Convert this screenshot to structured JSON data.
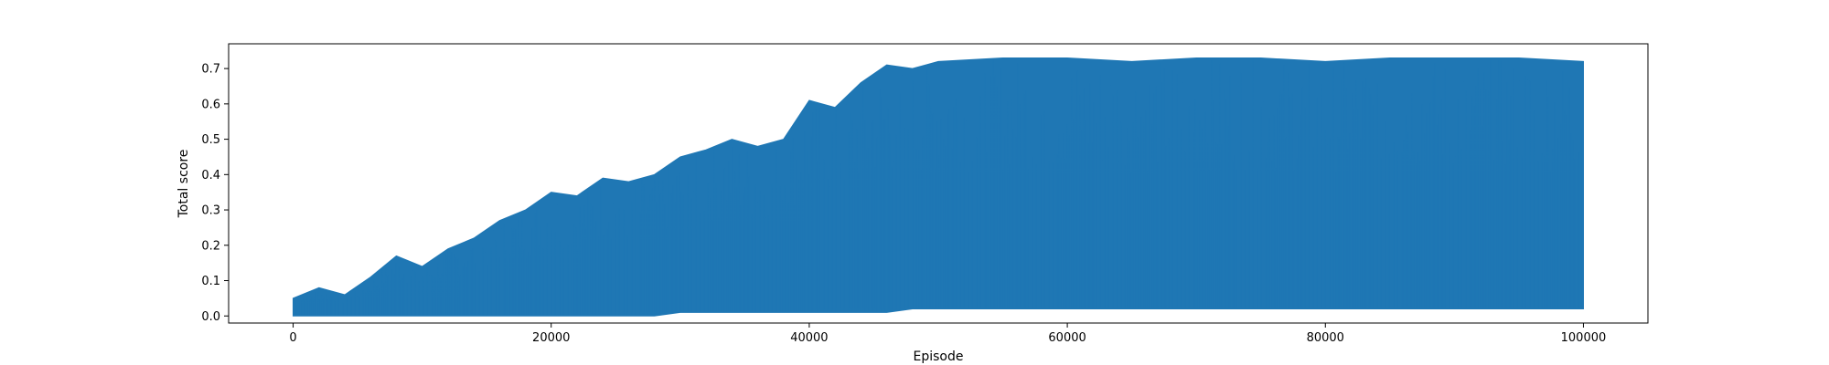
{
  "chart_data": {
    "type": "line",
    "title": "",
    "xlabel": "Episode",
    "ylabel": "Total score",
    "xlim": [
      -5000,
      105000
    ],
    "ylim": [
      -0.02,
      0.77
    ],
    "grid": false,
    "legend": "none",
    "series_color": "#1f77b4",
    "x_ticks": [
      0,
      20000,
      40000,
      60000,
      80000,
      100000
    ],
    "x_tick_labels": [
      "0",
      "20000",
      "40000",
      "60000",
      "80000",
      "100000"
    ],
    "y_ticks": [
      0.0,
      0.1,
      0.2,
      0.3,
      0.4,
      0.5,
      0.6,
      0.7
    ],
    "y_tick_labels": [
      "0.0",
      "0.1",
      "0.2",
      "0.3",
      "0.4",
      "0.5",
      "0.6",
      "0.7"
    ],
    "series": [
      {
        "x": [
          0,
          2000,
          4000,
          6000,
          8000,
          10000,
          12000,
          14000,
          16000,
          18000,
          20000,
          22000,
          24000,
          26000,
          28000,
          30000,
          32000,
          34000,
          36000,
          38000,
          40000,
          42000,
          44000,
          46000,
          48000,
          50000,
          55000,
          60000,
          65000,
          70000,
          75000,
          80000,
          85000,
          90000,
          95000,
          100000
        ],
        "upper": [
          0.05,
          0.08,
          0.06,
          0.11,
          0.17,
          0.14,
          0.19,
          0.22,
          0.27,
          0.3,
          0.35,
          0.34,
          0.39,
          0.38,
          0.4,
          0.45,
          0.47,
          0.5,
          0.48,
          0.5,
          0.61,
          0.59,
          0.66,
          0.71,
          0.7,
          0.72,
          0.73,
          0.73,
          0.72,
          0.73,
          0.73,
          0.72,
          0.73,
          0.73,
          0.73,
          0.72
        ],
        "lower": [
          0.0,
          0.0,
          0.0,
          0.0,
          0.0,
          0.0,
          0.0,
          0.0,
          0.0,
          0.0,
          0.0,
          0.0,
          0.0,
          0.0,
          0.0,
          0.01,
          0.01,
          0.01,
          0.01,
          0.01,
          0.01,
          0.01,
          0.01,
          0.01,
          0.02,
          0.02,
          0.02,
          0.02,
          0.02,
          0.02,
          0.02,
          0.02,
          0.02,
          0.02,
          0.02,
          0.02
        ]
      }
    ]
  }
}
